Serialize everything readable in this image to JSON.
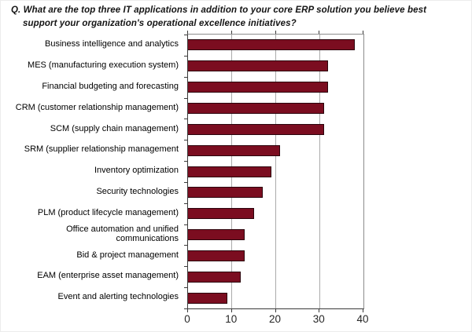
{
  "title": {
    "line1": "Q. What are the top three IT applications in addition to your core ERP solution you believe best",
    "line2": "support your organization's operational excellence initiatives?"
  },
  "chart_data": {
    "type": "bar",
    "orientation": "horizontal",
    "title": "Q. What are the top three IT applications in addition to your core ERP solution you believe best support your organization's operational excellence initiatives?",
    "categories": [
      "Business intelligence and analytics",
      "MES (manufacturing execution system)",
      "Financial budgeting and forecasting",
      "CRM (customer relationship management)",
      "SCM (supply chain management)",
      "SRM (supplier relationship management",
      "Inventory optimization",
      "Security technologies",
      "PLM (product lifecycle management)",
      "Office automation and unified communications",
      "Bid & project management",
      "EAM (enterprise asset management)",
      "Event and alerting technologies"
    ],
    "values": [
      38,
      32,
      32,
      31,
      31,
      21,
      19,
      17,
      15,
      13,
      13,
      12,
      9
    ],
    "xlabel": "",
    "ylabel": "",
    "xlim": [
      0,
      40
    ],
    "x_ticks": [
      0,
      10,
      20,
      30,
      40
    ],
    "grid": true,
    "legend": false,
    "colors": {
      "bar": "#7B0D20",
      "bar_border": "#2B040C",
      "gridline": "#ABABAB",
      "axis": "#3A3A3A",
      "plot_border": "#8C8C8C",
      "background": "#FFFFFF"
    }
  }
}
